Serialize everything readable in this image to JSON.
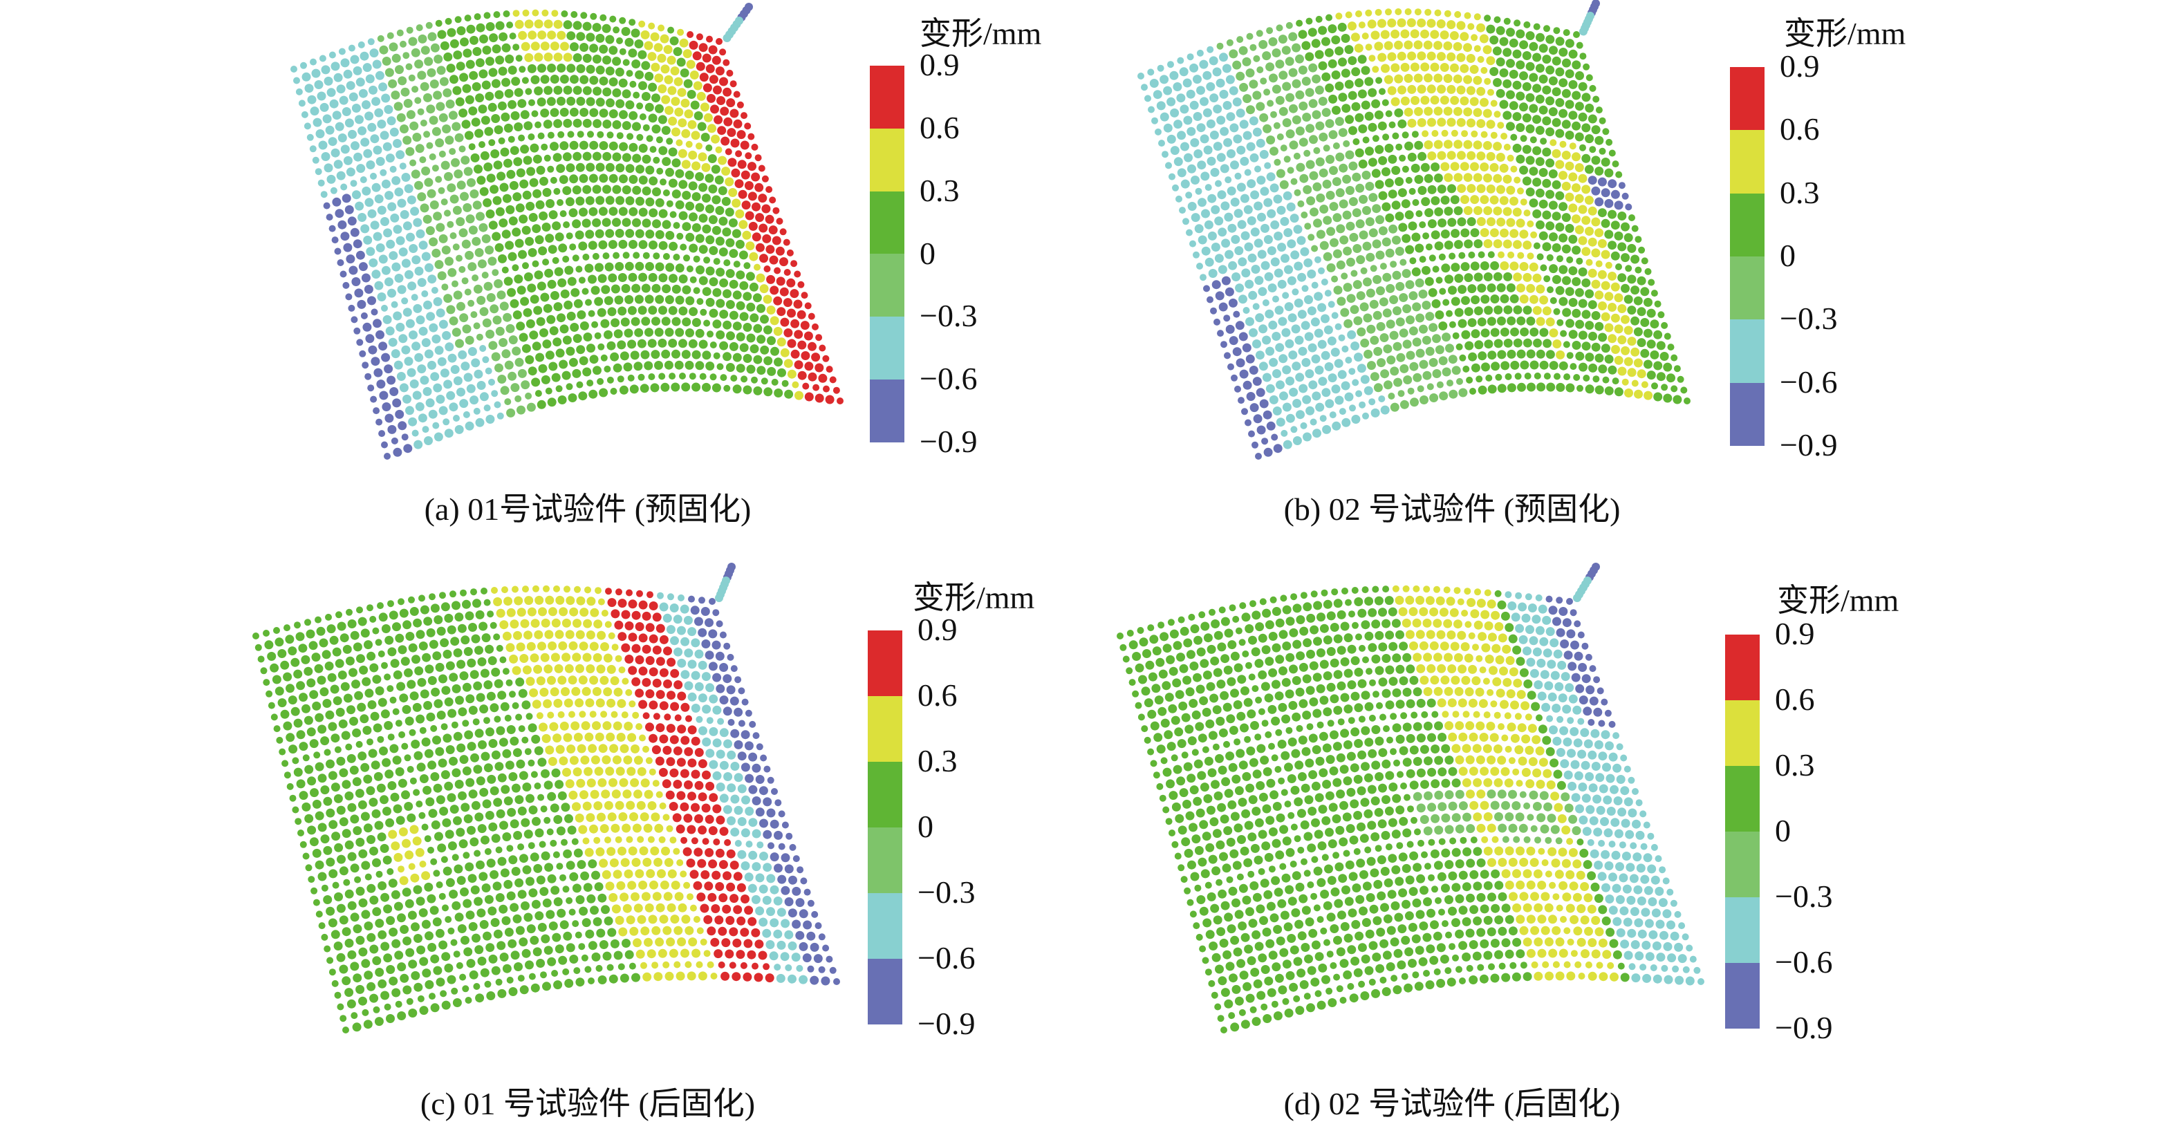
{
  "chart_data": [
    {
      "type": "heatmap",
      "title": "(a) 01号试验件 (预固化)",
      "colorbar_label": "变形/mm",
      "colorbar_ticks": [
        "0.9",
        "0.6",
        "0.3",
        "0",
        "−0.3",
        "−0.6",
        "−0.9"
      ],
      "bins": [
        [
          0.6,
          0.9
        ],
        [
          0.3,
          0.6
        ],
        [
          0,
          0.3
        ],
        [
          -0.3,
          0
        ],
        [
          -0.6,
          -0.3
        ],
        [
          -0.9,
          -0.6
        ]
      ],
      "bin_colors": [
        "#dc2a2c",
        "#dce03c",
        "#5fb534",
        "#7ec46a",
        "#88d0d0",
        "#6870b4"
      ]
    },
    {
      "type": "heatmap",
      "title": "(b) 02 号试验件 (预固化)",
      "colorbar_label": "变形/mm",
      "colorbar_ticks": [
        "0.9",
        "0.6",
        "0.3",
        "0",
        "−0.3",
        "−0.6",
        "−0.9"
      ],
      "bins": [
        [
          0.6,
          0.9
        ],
        [
          0.3,
          0.6
        ],
        [
          0,
          0.3
        ],
        [
          -0.3,
          0
        ],
        [
          -0.6,
          -0.3
        ],
        [
          -0.9,
          -0.6
        ]
      ],
      "bin_colors": [
        "#dc2a2c",
        "#dce03c",
        "#5fb534",
        "#7ec46a",
        "#88d0d0",
        "#6870b4"
      ]
    },
    {
      "type": "heatmap",
      "title": "(c) 01 号试验件 (后固化)",
      "colorbar_label": "变形/mm",
      "colorbar_ticks": [
        "0.9",
        "0.6",
        "0.3",
        "0",
        "−0.3",
        "−0.6",
        "−0.9"
      ],
      "bins": [
        [
          0.6,
          0.9
        ],
        [
          0.3,
          0.6
        ],
        [
          0,
          0.3
        ],
        [
          -0.3,
          0
        ],
        [
          -0.6,
          -0.3
        ],
        [
          -0.9,
          -0.6
        ]
      ],
      "bin_colors": [
        "#dc2a2c",
        "#dce03c",
        "#5fb534",
        "#7ec46a",
        "#88d0d0",
        "#6870b4"
      ]
    },
    {
      "type": "heatmap",
      "title": "(d) 02 号试验件 (后固化)",
      "colorbar_label": "变形/mm",
      "colorbar_ticks": [
        "0.9",
        "0.6",
        "0.3",
        "0",
        "−0.3",
        "−0.6",
        "−0.9"
      ],
      "bins": [
        [
          0.6,
          0.9
        ],
        [
          0.3,
          0.6
        ],
        [
          0,
          0.3
        ],
        [
          -0.3,
          0
        ],
        [
          -0.6,
          -0.3
        ],
        [
          -0.9,
          -0.6
        ]
      ],
      "bin_colors": [
        "#dc2a2c",
        "#dce03c",
        "#5fb534",
        "#7ec46a",
        "#88d0d0",
        "#6870b4"
      ]
    }
  ]
}
